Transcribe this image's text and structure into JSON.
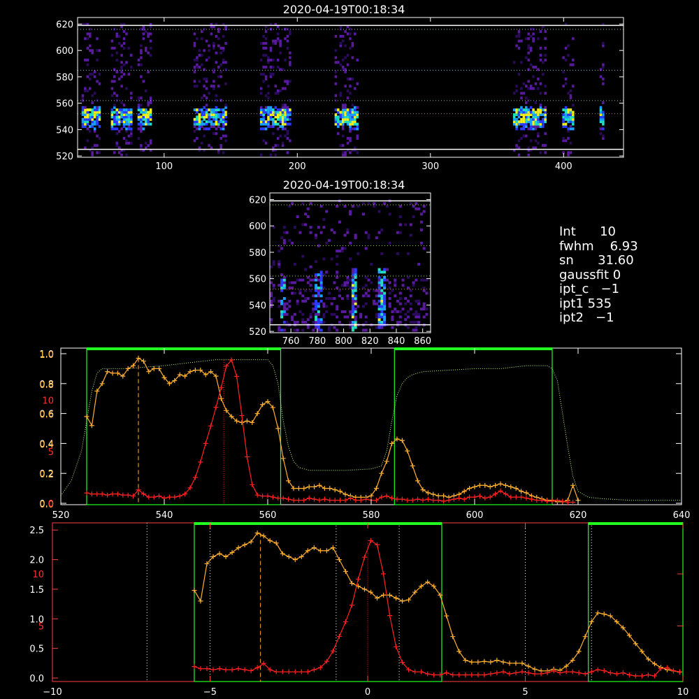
{
  "chart_data": [
    {
      "type": "heatmap",
      "title": "2020-04-19T00:18:34",
      "xlim": [
        35,
        445
      ],
      "ylim": [
        519,
        625
      ],
      "x_ticks": [
        "100",
        "200",
        "300",
        "400"
      ],
      "y_ticks": [
        "520",
        "540",
        "560",
        "580",
        "600",
        "620"
      ],
      "hlines_dotted": [
        616,
        585,
        562,
        552
      ],
      "hlines_solid": [
        525,
        619
      ],
      "active_columns": [
        [
          38,
          52
        ],
        [
          60,
          75
        ],
        [
          80,
          90
        ],
        [
          122,
          146
        ],
        [
          172,
          195
        ],
        [
          228,
          245
        ],
        [
          362,
          386
        ],
        [
          399,
          408
        ],
        [
          427,
          430
        ]
      ],
      "colormap": [
        "#000000",
        "#2a0a5a",
        "#5a1aa0",
        "#2a3aff",
        "#1aa0ff",
        "#20e0c0",
        "#f0f020"
      ]
    },
    {
      "type": "heatmap",
      "title": "2020-04-19T00:18:34",
      "xlim": [
        744,
        866
      ],
      "ylim": [
        519,
        625
      ],
      "x_ticks": [
        "760",
        "780",
        "800",
        "820",
        "840",
        "860"
      ],
      "y_ticks": [
        "520",
        "540",
        "560",
        "580",
        "600",
        "620"
      ],
      "hlines_dotted": [
        616,
        585,
        562,
        552
      ],
      "hlines_solid": [
        525,
        619
      ],
      "streaks": [
        [
          753,
          520,
          565,
          0.8
        ],
        [
          780,
          520,
          566,
          0.7
        ],
        [
          807,
          522,
          568,
          1.0
        ],
        [
          828,
          524,
          568,
          1.0
        ]
      ]
    },
    {
      "type": "line",
      "xlim": [
        520,
        640
      ],
      "ylim_left": [
        0,
        1.0
      ],
      "ylim_right_red": [
        0,
        14.5
      ],
      "x_ticks": [
        "520",
        "540",
        "560",
        "580",
        "600",
        "620",
        "640"
      ],
      "y_ticks_white": [
        "0.0",
        "0.2",
        "0.4",
        "0.6",
        "0.8",
        "1.0"
      ],
      "y_ticks_yellow": [
        "0.0",
        "0.2",
        "0.4",
        "0.6",
        "0.8",
        "1.0"
      ],
      "y_ticks_red": [
        "0",
        "5",
        "10"
      ],
      "green_boxes": [
        [
          525,
          562.5
        ],
        [
          584.5,
          615
        ]
      ],
      "markers": {
        "orange_dashed_x": 535,
        "red_dotted_x": 551.5
      },
      "transmission_curve": {
        "x": [
          520,
          522,
          524,
          525,
          526,
          527,
          528,
          530,
          533,
          536,
          540,
          545,
          550,
          555,
          558,
          560,
          561,
          562,
          563,
          564,
          565,
          566,
          568,
          570,
          575,
          580,
          582,
          583,
          584,
          585,
          586,
          587,
          588,
          589,
          590,
          600,
          605,
          610,
          614,
          615,
          616,
          617,
          618,
          619,
          620,
          622,
          625,
          630,
          640
        ],
        "y": [
          0.05,
          0.15,
          0.35,
          0.55,
          0.75,
          0.87,
          0.9,
          0.9,
          0.9,
          0.91,
          0.92,
          0.94,
          0.96,
          0.96,
          0.96,
          0.96,
          0.92,
          0.8,
          0.55,
          0.38,
          0.28,
          0.24,
          0.22,
          0.22,
          0.22,
          0.23,
          0.25,
          0.35,
          0.55,
          0.72,
          0.8,
          0.84,
          0.86,
          0.87,
          0.88,
          0.9,
          0.9,
          0.92,
          0.92,
          0.9,
          0.82,
          0.6,
          0.38,
          0.18,
          0.08,
          0.04,
          0.03,
          0.02,
          0.02
        ]
      },
      "yellow_series": {
        "x": [
          525,
          526,
          527,
          528,
          529,
          530,
          531,
          532,
          533,
          534,
          535,
          536,
          537,
          538,
          539,
          540,
          541,
          542,
          543,
          544,
          545,
          546,
          547,
          548,
          549,
          550,
          551,
          552,
          553,
          554,
          555,
          556,
          557,
          558,
          559,
          560,
          561,
          562,
          563,
          564,
          565,
          566,
          567,
          568,
          569,
          570,
          571,
          572,
          573,
          574,
          575,
          576,
          577,
          578,
          579,
          580,
          581,
          582,
          583,
          584,
          585,
          586,
          587,
          588,
          589,
          590,
          591,
          592,
          593,
          594,
          595,
          596,
          597,
          598,
          599,
          600,
          601,
          602,
          603,
          604,
          605,
          606,
          607,
          608,
          609,
          610,
          611,
          612,
          613,
          614,
          615,
          616,
          617,
          618,
          619,
          620
        ],
        "y": [
          0.58,
          0.52,
          0.75,
          0.8,
          0.88,
          0.87,
          0.87,
          0.85,
          0.9,
          0.92,
          0.97,
          0.95,
          0.88,
          0.9,
          0.9,
          0.84,
          0.8,
          0.82,
          0.86,
          0.85,
          0.88,
          0.89,
          0.89,
          0.86,
          0.88,
          0.85,
          0.7,
          0.62,
          0.58,
          0.55,
          0.54,
          0.55,
          0.54,
          0.6,
          0.66,
          0.68,
          0.64,
          0.5,
          0.3,
          0.15,
          0.1,
          0.1,
          0.1,
          0.11,
          0.11,
          0.12,
          0.1,
          0.1,
          0.09,
          0.08,
          0.06,
          0.05,
          0.04,
          0.04,
          0.04,
          0.05,
          0.1,
          0.2,
          0.28,
          0.4,
          0.43,
          0.42,
          0.35,
          0.25,
          0.15,
          0.09,
          0.07,
          0.06,
          0.05,
          0.05,
          0.04,
          0.05,
          0.06,
          0.08,
          0.1,
          0.11,
          0.12,
          0.12,
          0.11,
          0.12,
          0.13,
          0.12,
          0.11,
          0.1,
          0.08,
          0.07,
          0.05,
          0.04,
          0.03,
          0.02,
          0.02,
          0.01,
          0.01,
          0.02,
          0.12,
          0.02
        ]
      },
      "red_series": {
        "x": [
          525,
          526,
          527,
          528,
          529,
          530,
          531,
          532,
          533,
          534,
          535,
          536,
          537,
          538,
          539,
          540,
          541,
          542,
          543,
          544,
          545,
          546,
          547,
          548,
          549,
          550,
          551,
          552,
          553,
          554,
          555,
          556,
          557,
          558,
          559,
          560,
          561,
          562,
          563,
          564,
          565,
          566,
          567,
          568,
          569,
          570,
          571,
          572,
          573,
          574,
          575,
          576,
          577,
          578,
          579,
          580,
          581,
          582,
          583,
          584,
          585,
          586,
          587,
          588,
          589,
          590,
          591,
          592,
          593,
          594,
          595,
          596,
          597,
          598,
          599,
          600,
          601,
          602,
          603,
          604,
          605,
          606,
          607,
          608,
          609,
          610,
          611,
          612,
          613,
          614,
          615,
          616,
          617,
          618,
          619
        ],
        "y": [
          1.0,
          0.9,
          0.9,
          0.9,
          0.8,
          0.9,
          0.9,
          0.8,
          0.8,
          0.7,
          1.3,
          0.9,
          0.6,
          0.6,
          0.7,
          0.5,
          0.6,
          0.6,
          0.7,
          0.9,
          1.5,
          2.5,
          4.0,
          5.8,
          7.5,
          9.3,
          11.2,
          13.3,
          13.9,
          12.3,
          8.5,
          4.5,
          1.8,
          0.8,
          0.7,
          0.7,
          0.6,
          0.5,
          0.5,
          0.4,
          0.3,
          0.3,
          0.3,
          0.5,
          0.4,
          0.3,
          0.4,
          0.3,
          0.3,
          0.3,
          0.3,
          0.5,
          0.3,
          0.3,
          0.4,
          0.3,
          0.3,
          0.6,
          0.7,
          0.5,
          0.4,
          0.4,
          0.3,
          0.3,
          0.4,
          0.3,
          0.4,
          0.3,
          0.3,
          0.2,
          0.3,
          0.4,
          0.5,
          0.4,
          0.6,
          0.6,
          0.7,
          0.5,
          0.6,
          0.9,
          1.2,
          0.9,
          0.6,
          0.6,
          0.6,
          0.5,
          0.4,
          0.3,
          0.3,
          0.2,
          0.2,
          0.3,
          0.2,
          0.1,
          0.1
        ]
      }
    },
    {
      "type": "line",
      "xlim": [
        -10,
        10
      ],
      "ylim_left": [
        0,
        2.55
      ],
      "ylim_right_red": [
        0,
        14.5
      ],
      "x_ticks": [
        "−10",
        "−5",
        "0",
        "5",
        "10"
      ],
      "y_ticks_white": [
        "0.0",
        "0.5",
        "1.0",
        "1.5",
        "2.0",
        "2.5"
      ],
      "y_ticks_red": [
        "5",
        "10"
      ],
      "green_boxes": [
        [
          -5.5,
          2.35
        ],
        [
          7.0,
          10.0
        ]
      ],
      "white_dotted_x": [
        -7.0,
        -5.0,
        -1.0,
        1.0,
        5.0,
        7.1
      ],
      "markers": {
        "orange_dashed_x": -3.4,
        "red_dotted_x": 0.0
      },
      "yellow_series": {
        "x": [
          -5.5,
          -5.3,
          -5.1,
          -4.9,
          -4.7,
          -4.5,
          -4.3,
          -4.1,
          -3.9,
          -3.7,
          -3.5,
          -3.3,
          -3.1,
          -2.9,
          -2.7,
          -2.5,
          -2.3,
          -2.1,
          -1.9,
          -1.7,
          -1.5,
          -1.3,
          -1.1,
          -0.9,
          -0.7,
          -0.5,
          -0.3,
          -0.1,
          0.1,
          0.3,
          0.5,
          0.7,
          0.9,
          1.1,
          1.3,
          1.5,
          1.7,
          1.9,
          2.1,
          2.3,
          2.5,
          2.7,
          2.9,
          3.1,
          3.3,
          3.5,
          3.7,
          3.9,
          4.1,
          4.3,
          4.5,
          4.7,
          4.9,
          5.1,
          5.3,
          5.5,
          5.7,
          5.9,
          6.1,
          6.3,
          6.5,
          6.7,
          6.9,
          7.1,
          7.3,
          7.5,
          7.7,
          7.9,
          8.1,
          8.3,
          8.5,
          8.7,
          8.9,
          9.1,
          9.3,
          9.5,
          9.7,
          9.9
        ],
        "y": [
          1.48,
          1.3,
          1.93,
          2.05,
          2.1,
          2.05,
          2.12,
          2.2,
          2.25,
          2.3,
          2.45,
          2.4,
          2.32,
          2.28,
          2.1,
          2.05,
          2.0,
          2.05,
          2.15,
          2.2,
          2.15,
          2.15,
          2.2,
          2.0,
          1.8,
          1.6,
          1.55,
          1.5,
          1.45,
          1.35,
          1.4,
          1.4,
          1.35,
          1.3,
          1.32,
          1.45,
          1.55,
          1.62,
          1.55,
          1.4,
          1.05,
          0.7,
          0.45,
          0.3,
          0.27,
          0.27,
          0.28,
          0.27,
          0.3,
          0.27,
          0.25,
          0.25,
          0.25,
          0.2,
          0.15,
          0.12,
          0.12,
          0.15,
          0.13,
          0.2,
          0.3,
          0.45,
          0.7,
          0.95,
          1.1,
          1.08,
          1.05,
          0.95,
          0.85,
          0.72,
          0.58,
          0.45,
          0.32,
          0.24,
          0.18,
          0.14,
          0.12,
          0.1
        ]
      },
      "red_series": {
        "x": [
          -5.5,
          -5.3,
          -5.1,
          -4.9,
          -4.7,
          -4.5,
          -4.3,
          -4.1,
          -3.9,
          -3.7,
          -3.5,
          -3.3,
          -3.1,
          -2.9,
          -2.7,
          -2.5,
          -2.3,
          -2.1,
          -1.9,
          -1.7,
          -1.5,
          -1.3,
          -1.1,
          -0.9,
          -0.7,
          -0.5,
          -0.3,
          -0.1,
          0.1,
          0.3,
          0.5,
          0.7,
          0.9,
          1.1,
          1.3,
          1.5,
          1.7,
          1.9,
          2.1,
          2.3,
          2.5,
          2.7,
          2.9,
          3.1,
          3.3,
          3.5,
          3.7,
          3.9,
          4.1,
          4.3,
          4.5,
          4.7,
          4.9,
          5.1,
          5.3,
          5.5,
          5.7,
          5.9,
          6.1,
          6.3,
          6.5,
          6.7,
          6.9,
          7.1,
          7.3,
          7.5,
          7.7,
          7.9,
          8.1,
          8.3,
          8.5,
          8.7,
          8.9,
          9.1,
          9.3,
          9.5,
          9.7,
          9.9
        ],
        "y": [
          1.1,
          0.9,
          0.9,
          0.8,
          0.9,
          0.8,
          0.8,
          0.9,
          0.8,
          0.7,
          1.0,
          1.4,
          0.8,
          0.6,
          0.6,
          0.6,
          0.6,
          0.6,
          0.6,
          0.8,
          1.0,
          1.6,
          2.6,
          4.0,
          5.4,
          7.0,
          9.5,
          11.6,
          13.2,
          12.8,
          10.0,
          6.0,
          3.0,
          1.5,
          0.8,
          0.6,
          0.6,
          0.4,
          0.3,
          0.3,
          0.5,
          0.3,
          0.3,
          0.3,
          0.3,
          0.3,
          0.3,
          0.4,
          0.5,
          0.6,
          0.4,
          0.5,
          0.6,
          0.5,
          0.4,
          0.4,
          0.5,
          0.7,
          0.5,
          0.6,
          0.6,
          0.5,
          0.4,
          0.6,
          0.8,
          0.7,
          0.5,
          0.4,
          0.5,
          0.3,
          0.2,
          0.2,
          0.3,
          0.2,
          0.9,
          1.0,
          0.7,
          0.6
        ]
      }
    }
  ],
  "info_panel": {
    "int_line": "Int      10",
    "fwhm_line": "fwhm    6.93",
    "sn_line": "sn      31.60",
    "gaussfit_line": "gaussfit 0",
    "ipt_c_line": "ipt_c   −1",
    "ipt1_line": "ipt1 535",
    "ipt2_line": "ipt2   −1"
  },
  "colors": {
    "yellow": "#ffb030",
    "red": "#ff2020",
    "green": "#20ff20",
    "transmission": "#c8ff80",
    "axis": "#ffffff",
    "bottom_axis": "#ff4040"
  }
}
